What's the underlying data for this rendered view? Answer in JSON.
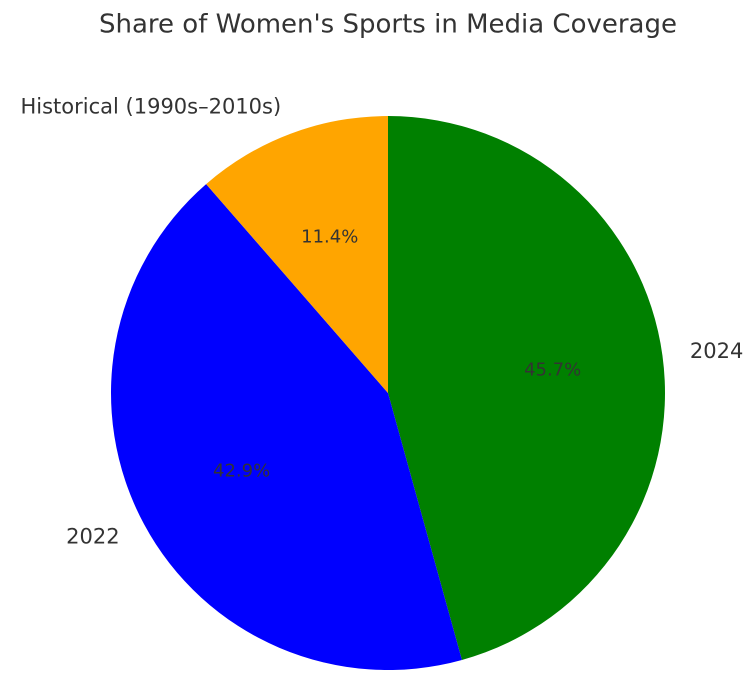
{
  "chart_data": {
    "type": "pie",
    "title": "Share of Women's Sports in Media Coverage",
    "categories": [
      "2024",
      "2022",
      "Historical (1990s–2010s)"
    ],
    "values": [
      45.7,
      42.9,
      11.4
    ],
    "value_labels": [
      "45.7%",
      "42.9%",
      "11.4%"
    ],
    "colors": [
      "#008000",
      "#0000ff",
      "#ffa500"
    ]
  }
}
